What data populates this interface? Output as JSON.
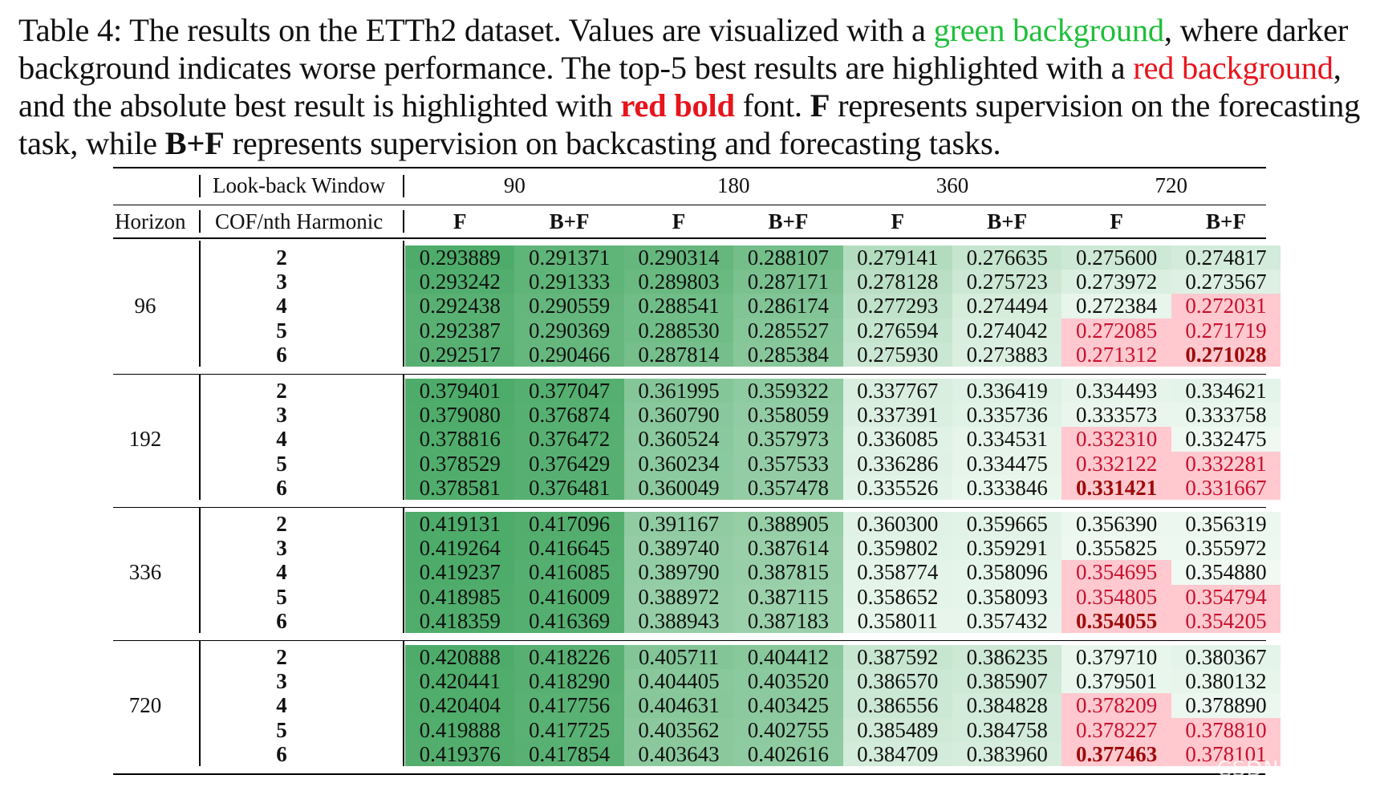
{
  "caption": {
    "p1": "Table 4: The results on the ETTh2 dataset. Values are visualized with a ",
    "green_text": "green background",
    "p2": ", where darker background indicates worse performance. The top-5 best results are highlighted with a ",
    "red_text": "red background",
    "p3": ", and the absolute best result is highlighted with ",
    "redbold_text": "red bold",
    "p4": " font. ",
    "f_text": "F",
    "p5": " represents supervision on the forecasting task, while ",
    "bf_text": "B+F",
    "p6": " represents supervision on backcasting and forecasting tasks."
  },
  "header": {
    "lookback_label": "Look-back Window",
    "horizon_label": "Horizon",
    "cof_label": "COF/nth Harmonic",
    "windows": [
      "90",
      "180",
      "360",
      "720"
    ],
    "sub": [
      "F",
      "B+F",
      "F",
      "B+F",
      "F",
      "B+F",
      "F",
      "B+F"
    ]
  },
  "colors": {
    "caption_green": "#1fbf3a",
    "caption_red": "#e8141c",
    "highlight_red_bg": "#ffc9cf",
    "best_red_text": "#9e0b0b",
    "green_dark": "#4eac6a",
    "green_light": "#f4fbf6"
  },
  "table": {
    "groups": [
      {
        "horizon": "96",
        "rows": [
          {
            "h": "2",
            "vals": [
              "0.293889",
              "0.291371",
              "0.290314",
              "0.288107",
              "0.279141",
              "0.276635",
              "0.275600",
              "0.274817"
            ]
          },
          {
            "h": "3",
            "vals": [
              "0.293242",
              "0.291333",
              "0.289803",
              "0.287171",
              "0.278128",
              "0.275723",
              "0.273972",
              "0.273567"
            ]
          },
          {
            "h": "4",
            "vals": [
              "0.292438",
              "0.290559",
              "0.288541",
              "0.286174",
              "0.277293",
              "0.274494",
              "0.272384",
              "0.272031"
            ]
          },
          {
            "h": "5",
            "vals": [
              "0.292387",
              "0.290369",
              "0.288530",
              "0.285527",
              "0.276594",
              "0.274042",
              "0.272085",
              "0.271719"
            ]
          },
          {
            "h": "6",
            "vals": [
              "0.292517",
              "0.290466",
              "0.287814",
              "0.285384",
              "0.275930",
              "0.273883",
              "0.271312",
              "0.271028"
            ]
          }
        ]
      },
      {
        "horizon": "192",
        "rows": [
          {
            "h": "2",
            "vals": [
              "0.379401",
              "0.377047",
              "0.361995",
              "0.359322",
              "0.337767",
              "0.336419",
              "0.334493",
              "0.334621"
            ]
          },
          {
            "h": "3",
            "vals": [
              "0.379080",
              "0.376874",
              "0.360790",
              "0.358059",
              "0.337391",
              "0.335736",
              "0.333573",
              "0.333758"
            ]
          },
          {
            "h": "4",
            "vals": [
              "0.378816",
              "0.376472",
              "0.360524",
              "0.357973",
              "0.336085",
              "0.334531",
              "0.332310",
              "0.332475"
            ]
          },
          {
            "h": "5",
            "vals": [
              "0.378529",
              "0.376429",
              "0.360234",
              "0.357533",
              "0.336286",
              "0.334475",
              "0.332122",
              "0.332281"
            ]
          },
          {
            "h": "6",
            "vals": [
              "0.378581",
              "0.376481",
              "0.360049",
              "0.357478",
              "0.335526",
              "0.333846",
              "0.331421",
              "0.331667"
            ]
          }
        ]
      },
      {
        "horizon": "336",
        "rows": [
          {
            "h": "2",
            "vals": [
              "0.419131",
              "0.417096",
              "0.391167",
              "0.388905",
              "0.360300",
              "0.359665",
              "0.356390",
              "0.356319"
            ]
          },
          {
            "h": "3",
            "vals": [
              "0.419264",
              "0.416645",
              "0.389740",
              "0.387614",
              "0.359802",
              "0.359291",
              "0.355825",
              "0.355972"
            ]
          },
          {
            "h": "4",
            "vals": [
              "0.419237",
              "0.416085",
              "0.389790",
              "0.387815",
              "0.358774",
              "0.358096",
              "0.354695",
              "0.354880"
            ]
          },
          {
            "h": "5",
            "vals": [
              "0.418985",
              "0.416009",
              "0.388972",
              "0.387115",
              "0.358652",
              "0.358093",
              "0.354805",
              "0.354794"
            ]
          },
          {
            "h": "6",
            "vals": [
              "0.418359",
              "0.416369",
              "0.388943",
              "0.387183",
              "0.358011",
              "0.357432",
              "0.354055",
              "0.354205"
            ]
          }
        ]
      },
      {
        "horizon": "720",
        "rows": [
          {
            "h": "2",
            "vals": [
              "0.420888",
              "0.418226",
              "0.405711",
              "0.404412",
              "0.387592",
              "0.386235",
              "0.379710",
              "0.380367"
            ]
          },
          {
            "h": "3",
            "vals": [
              "0.420441",
              "0.418290",
              "0.404405",
              "0.403520",
              "0.386570",
              "0.385907",
              "0.379501",
              "0.380132"
            ]
          },
          {
            "h": "4",
            "vals": [
              "0.420404",
              "0.417756",
              "0.404631",
              "0.403425",
              "0.386556",
              "0.384828",
              "0.378209",
              "0.378890"
            ]
          },
          {
            "h": "5",
            "vals": [
              "0.419888",
              "0.417725",
              "0.403562",
              "0.402755",
              "0.385489",
              "0.384758",
              "0.378227",
              "0.378810"
            ]
          },
          {
            "h": "6",
            "vals": [
              "0.419376",
              "0.417854",
              "0.403643",
              "0.402616",
              "0.384709",
              "0.383960",
              "0.377463",
              "0.378101"
            ]
          }
        ]
      }
    ]
  },
  "watermark": "CSDN @萧宛亦"
}
